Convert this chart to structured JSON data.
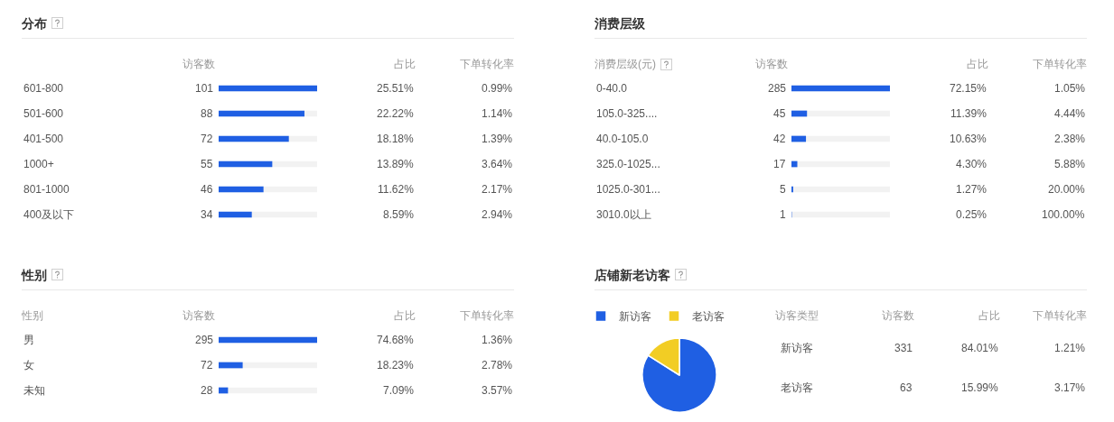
{
  "chart_data": [
    {
      "type": "bar",
      "orientation": "horizontal",
      "title": "分布",
      "xlabel": "访客数",
      "categories": [
        "601-800",
        "501-600",
        "401-500",
        "1000+",
        "801-1000",
        "400及以下"
      ],
      "values": [
        101,
        88,
        72,
        55,
        46,
        34
      ],
      "color": "#1f5fe3",
      "data_labels": true,
      "tick_labels": "y",
      "annotations": [
        "占比",
        "下单转化率",
        "25.51%",
        "0.99%",
        "22.22%",
        "1.14%",
        "18.18%",
        "1.39%",
        "13.89%",
        "3.64%",
        "11.62%",
        "2.17%",
        "8.59%",
        "2.94%"
      ]
    },
    {
      "type": "bar",
      "orientation": "horizontal",
      "title": "消费层级",
      "xlabel": "访客数",
      "ylabel": "消费层级(元)",
      "categories": [
        "0-40.0",
        "105.0-325....",
        "40.0-105.0",
        "325.0-1025...",
        "1025.0-301...",
        "3010.0以上"
      ],
      "values": [
        285,
        45,
        42,
        17,
        5,
        1
      ],
      "color": "#1f5fe3",
      "data_labels": true,
      "tick_labels": "y",
      "annotations": [
        "占比",
        "下单转化率",
        "72.15%",
        "1.05%",
        "11.39%",
        "4.44%",
        "10.63%",
        "2.38%",
        "4.30%",
        "5.88%",
        "1.27%",
        "20.00%",
        "0.25%",
        "100.00%"
      ]
    },
    {
      "type": "bar",
      "orientation": "horizontal",
      "title": "性别",
      "xlabel": "访客数",
      "ylabel": "性别",
      "categories": [
        "男",
        "女",
        "未知"
      ],
      "values": [
        295,
        72,
        28
      ],
      "color": "#1f5fe3",
      "data_labels": true,
      "tick_labels": "y",
      "annotations": [
        "占比",
        "下单转化率",
        "74.68%",
        "1.36%",
        "18.23%",
        "2.78%",
        "7.09%",
        "3.57%"
      ]
    },
    {
      "type": "pie",
      "title": "店铺新老访客",
      "categories": [
        "新访客",
        "老访客"
      ],
      "values": [
        84.01,
        15.99
      ],
      "colors": [
        "#1f5fe3",
        "#f2cd24"
      ],
      "legend": "top left",
      "annotations": [
        "访客类型",
        "访客数",
        "占比",
        "下单转化率",
        "331",
        "84.01%",
        "1.21%",
        "63",
        "15.99%",
        "3.17%"
      ]
    }
  ]
}
